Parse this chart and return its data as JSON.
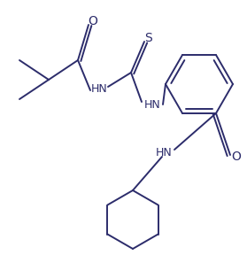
{
  "background_color": "#ffffff",
  "line_color": "#2c2c6b",
  "text_color": "#2c2c6b",
  "figsize": [
    2.79,
    2.88
  ],
  "dpi": 100,
  "lw": 1.4,
  "ring_color": "#1a1a1a",
  "label_S": "S",
  "label_O1": "O",
  "label_O2": "O",
  "label_HN1": "HN",
  "label_HN2": "HN"
}
